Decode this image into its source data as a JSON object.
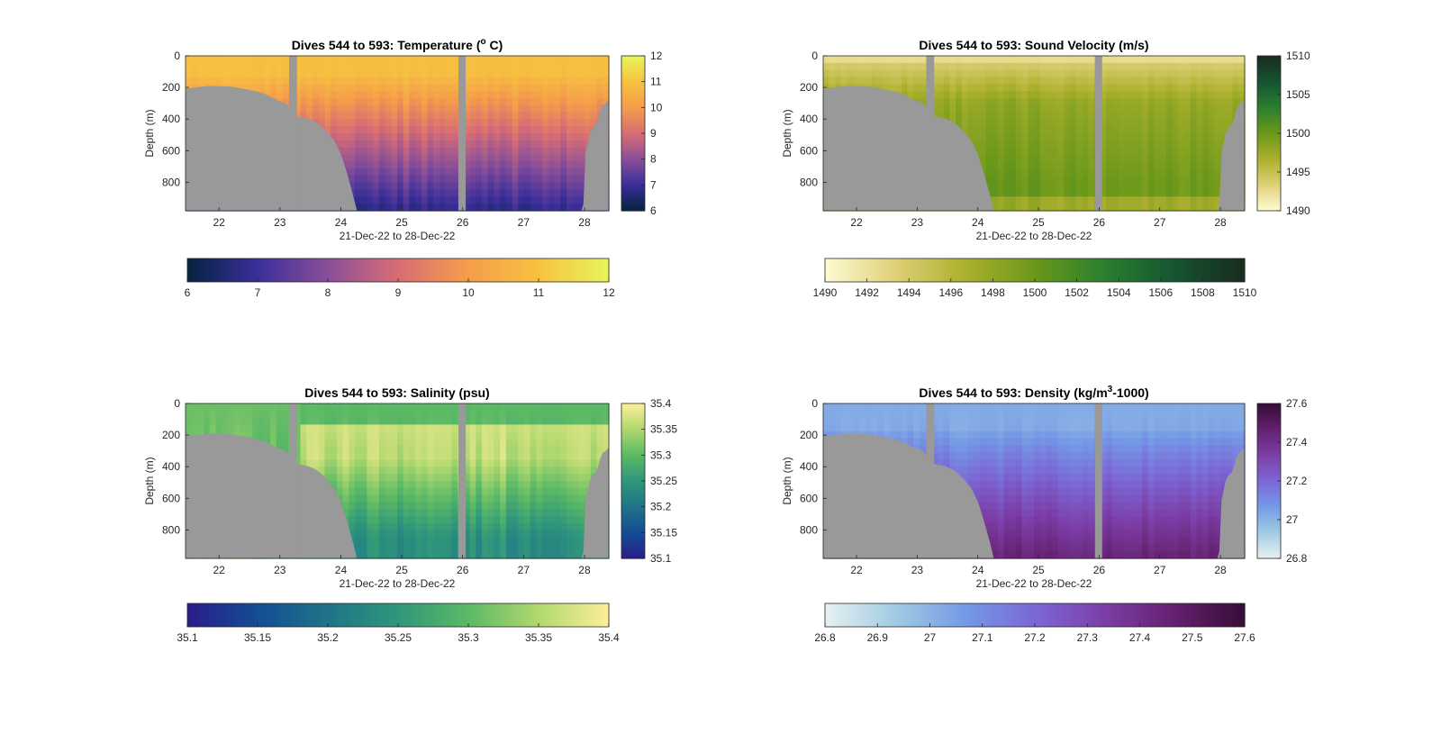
{
  "chart_data": [
    {
      "type": "heatmap",
      "title": "Dives 544 to 593: Temperature (°C)",
      "title_parts": {
        "pre": "Dives 544 to 593: Temperature (",
        "sup": "o",
        "post": " C)"
      },
      "xlabel": "21-Dec-22 to 28-Dec-22",
      "ylabel": "Depth (m)",
      "xlim": [
        21.45,
        28.4
      ],
      "ylim": [
        0,
        980
      ],
      "x_ticks": [
        "22",
        "23",
        "24",
        "25",
        "26",
        "27",
        "28"
      ],
      "y_ticks": [
        "0",
        "200",
        "400",
        "600",
        "800"
      ],
      "clim": [
        6,
        12
      ],
      "colorbar_ticks": [
        "12",
        "11",
        "10",
        "9",
        "8",
        "7",
        "6"
      ],
      "bottom_colorbar_ticks": [
        "6",
        "7",
        "8",
        "9",
        "10",
        "11",
        "12"
      ],
      "colormap": "thermal",
      "colors": [
        "#04233e",
        "#3b2e9a",
        "#8a4f99",
        "#d86d73",
        "#f59d4b",
        "#f7c240",
        "#e8f55a"
      ],
      "surface_value": 10.9,
      "bottom_value": 6.8,
      "gradient_depth": 120,
      "stripe_amplitude": 0.25
    },
    {
      "type": "heatmap",
      "title": "Dives 544 to 593: Sound Velocity (m/s)",
      "title_parts": {
        "pre": "Dives 544 to 593: Sound Velocity (m/s)",
        "sup": "",
        "post": ""
      },
      "xlabel": "21-Dec-22 to 28-Dec-22",
      "ylabel": "Depth (m)",
      "xlim": [
        21.45,
        28.4
      ],
      "ylim": [
        0,
        980
      ],
      "x_ticks": [
        "22",
        "23",
        "24",
        "25",
        "26",
        "27",
        "28"
      ],
      "y_ticks": [
        "0",
        "200",
        "400",
        "600",
        "800"
      ],
      "clim": [
        1490,
        1510
      ],
      "colorbar_ticks": [
        "1510",
        "1505",
        "1500",
        "1495",
        "1490"
      ],
      "bottom_colorbar_ticks": [
        "1490",
        "1492",
        "1494",
        "1496",
        "1498",
        "1500",
        "1502",
        "1504",
        "1506",
        "1508",
        "1510"
      ],
      "colormap": "speed",
      "colors": [
        "#fefbd3",
        "#dfd178",
        "#abb02d",
        "#6b981a",
        "#2a7f2f",
        "#165431",
        "#182b1e"
      ],
      "surface_value": 1494,
      "bottom_value": 1500,
      "mid_value": 1498,
      "gradient_depth": 300,
      "stripe_amplitude": 0.8
    },
    {
      "type": "heatmap",
      "title": "Dives 544 to 593: Salinity (psu)",
      "title_parts": {
        "pre": "Dives 544 to 593: Salinity (psu)",
        "sup": "",
        "post": ""
      },
      "xlabel": "21-Dec-22 to 28-Dec-22",
      "ylabel": "Depth (m)",
      "xlim": [
        21.45,
        28.4
      ],
      "ylim": [
        0,
        980
      ],
      "x_ticks": [
        "22",
        "23",
        "24",
        "25",
        "26",
        "27",
        "28"
      ],
      "y_ticks": [
        "0",
        "200",
        "400",
        "600",
        "800"
      ],
      "clim": [
        35.1,
        35.4
      ],
      "colorbar_ticks": [
        "35.4",
        "35.35",
        "35.3",
        "35.25",
        "35.2",
        "35.15",
        "35.1"
      ],
      "bottom_colorbar_ticks": [
        "35.1",
        "35.15",
        "35.2",
        "35.25",
        "35.3",
        "35.35",
        "35.4"
      ],
      "colormap": "haline",
      "colors": [
        "#2a1d8a",
        "#134d93",
        "#1f7488",
        "#30977a",
        "#5bb965",
        "#b1d86f",
        "#fdee9a"
      ],
      "surface_value": 35.3,
      "subsurface_value": 35.37,
      "bottom_value": 35.24,
      "gradient_depth": 200,
      "stripe_amplitude": 0.02
    },
    {
      "type": "heatmap",
      "title": "Dives 544 to 593: Density (kg/m³-1000)",
      "title_parts": {
        "pre": "Dives 544 to 593: Density (kg/m",
        "sup": "3",
        "post": "-1000)"
      },
      "xlabel": "21-Dec-22 to 28-Dec-22",
      "ylabel": "Depth (m)",
      "xlim": [
        21.45,
        28.4
      ],
      "ylim": [
        0,
        980
      ],
      "x_ticks": [
        "22",
        "23",
        "24",
        "25",
        "26",
        "27",
        "28"
      ],
      "y_ticks": [
        "0",
        "200",
        "400",
        "600",
        "800"
      ],
      "clim": [
        26.8,
        27.6
      ],
      "colorbar_ticks": [
        "27.6",
        "27.4",
        "27.2",
        "27",
        "26.8"
      ],
      "bottom_colorbar_ticks": [
        "26.8",
        "26.9",
        "27",
        "27.1",
        "27.2",
        "27.3",
        "27.4",
        "27.5",
        "27.6"
      ],
      "colormap": "dense",
      "colors": [
        "#e6f1f1",
        "#a1cbe3",
        "#7499e6",
        "#7b68d6",
        "#7c3ea6",
        "#64206f",
        "#360d36"
      ],
      "surface_value": 27.02,
      "bottom_value": 27.45,
      "gradient_depth": 150,
      "stripe_amplitude": 0.03
    }
  ],
  "landmask": {
    "color": "#999999",
    "bathymetry_depth_m": [
      [
        21.45,
        210
      ],
      [
        21.6,
        200
      ],
      [
        21.85,
        190
      ],
      [
        22.2,
        195
      ],
      [
        22.5,
        215
      ],
      [
        22.75,
        240
      ],
      [
        22.95,
        280
      ],
      [
        23.1,
        300
      ],
      [
        23.25,
        380
      ],
      [
        23.45,
        395
      ],
      [
        23.6,
        420
      ],
      [
        23.75,
        470
      ],
      [
        23.9,
        540
      ],
      [
        24.0,
        620
      ],
      [
        24.1,
        740
      ],
      [
        24.2,
        880
      ],
      [
        24.27,
        990
      ],
      [
        27.98,
        990
      ],
      [
        28.0,
        640
      ],
      [
        28.1,
        470
      ],
      [
        28.2,
        430
      ],
      [
        28.28,
        320
      ],
      [
        28.4,
        280
      ]
    ],
    "gaps_days": [
      [
        23.15,
        23.28
      ],
      [
        25.93,
        26.05
      ]
    ]
  },
  "colors": {
    "background": "#ffffff",
    "axes": "#262626",
    "mask": "#999999"
  }
}
